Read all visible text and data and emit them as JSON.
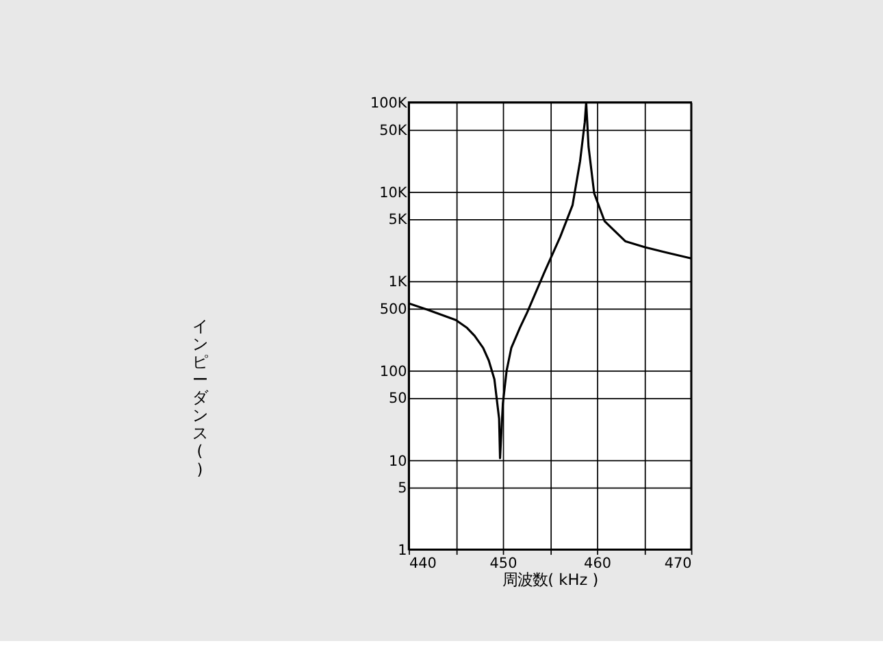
{
  "chart_data": {
    "type": "line",
    "xlabel": "周波数( kHz )",
    "ylabel": "インピーダンス( )",
    "x": [
      440,
      442,
      445,
      446.2,
      447,
      447.9,
      448.5,
      449.1,
      449.6,
      449.7,
      450.0,
      450.4,
      450.9,
      451.8,
      452.6,
      454.4,
      456.1,
      457.4,
      458.2,
      458.7,
      458.85,
      459.1,
      459.7,
      460.8,
      463.0,
      465.1,
      467.3,
      470
    ],
    "series": [
      {
        "color": "#000000",
        "values": [
          565,
          480,
          368,
          300,
          245,
          180,
          130,
          80,
          29,
          10.5,
          43,
          100,
          180,
          300,
          452,
          1250,
          3140,
          7070,
          21900,
          60000,
          100000,
          32000,
          9600,
          4700,
          2800,
          2400,
          2100,
          1800
        ]
      }
    ],
    "xlim": [
      440,
      470
    ],
    "xticks": [
      440,
      {
        "value": 445,
        "label": null
      },
      450,
      {
        "value": 455,
        "label": null
      },
      460,
      {
        "value": 465,
        "label": null
      },
      470
    ],
    "ylim": [
      1,
      100000
    ],
    "yticks": [
      1,
      5,
      10,
      50,
      100,
      500,
      {
        "value": 1000,
        "label": "1K"
      },
      {
        "value": 5000,
        "label": "5K"
      },
      {
        "value": 10000,
        "label": "10K"
      },
      {
        "value": 50000,
        "label": "50K"
      },
      {
        "value": 100000,
        "label": "100K"
      }
    ],
    "log": "y",
    "grid": true,
    "marker": "none",
    "line_style": "solid"
  }
}
